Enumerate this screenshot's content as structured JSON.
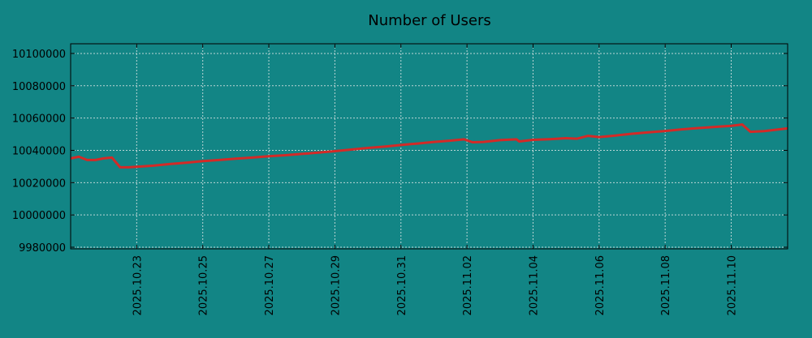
{
  "chart_data": {
    "type": "line",
    "title": "Number of Users",
    "xlabel": "",
    "ylabel": "",
    "ylim": [
      9979000,
      10106000
    ],
    "yticks": [
      9980000,
      10000000,
      10020000,
      10040000,
      10060000,
      10080000,
      10100000
    ],
    "xlim": [
      "2025.10.21 00:00",
      "2025.11.11 17:00"
    ],
    "xticks": [
      "2025.10.23",
      "2025.10.25",
      "2025.10.27",
      "2025.10.29",
      "2025.10.31",
      "2025.11.02",
      "2025.11.04",
      "2025.11.06",
      "2025.11.08",
      "2025.11.10"
    ],
    "grid": true,
    "legend": "none",
    "colors": {
      "background": "#128585",
      "line": "#d32a27",
      "grid": "#bcd6d6",
      "spine": "#000000"
    },
    "series": [
      {
        "x": [
          "2025.10.21 00:00",
          "2025.10.21 06:00",
          "2025.10.21 12:00",
          "2025.10.21 18:00",
          "2025.10.22 00:00",
          "2025.10.22 06:00",
          "2025.10.22 12:00",
          "2025.10.22 18:00",
          "2025.10.23 00:00",
          "2025.10.23 12:00",
          "2025.10.24 00:00",
          "2025.10.24 12:00",
          "2025.10.25 00:00",
          "2025.10.25 12:00",
          "2025.10.26 00:00",
          "2025.10.26 12:00",
          "2025.10.27 00:00",
          "2025.10.27 12:00",
          "2025.10.28 00:00",
          "2025.10.28 12:00",
          "2025.10.29 00:00",
          "2025.10.29 12:00",
          "2025.10.30 00:00",
          "2025.10.30 12:00",
          "2025.10.31 00:00",
          "2025.10.31 12:00",
          "2025.11.01 00:00",
          "2025.11.01 12:00",
          "2025.11.01 22:00",
          "2025.11.02 04:00",
          "2025.11.02 12:00",
          "2025.11.03 00:00",
          "2025.11.03 12:00",
          "2025.11.03 14:00",
          "2025.11.04 00:00",
          "2025.11.04 12:00",
          "2025.11.05 00:00",
          "2025.11.05 08:00",
          "2025.11.05 16:00",
          "2025.11.06 00:00",
          "2025.11.06 12:00",
          "2025.11.07 00:00",
          "2025.11.07 12:00",
          "2025.11.08 00:00",
          "2025.11.08 12:00",
          "2025.11.09 00:00",
          "2025.11.09 12:00",
          "2025.11.10 00:00",
          "2025.11.10 08:00",
          "2025.11.10 14:00",
          "2025.11.11 00:00",
          "2025.11.11 17:00"
        ],
        "y": [
          10035000,
          10036000,
          10034000,
          10034000,
          10035000,
          10035500,
          10029500,
          10029500,
          10029800,
          10030500,
          10031500,
          10032300,
          10033300,
          10034000,
          10034800,
          10035500,
          10036400,
          10037000,
          10037800,
          10038600,
          10039500,
          10040500,
          10041500,
          10042300,
          10043300,
          10044200,
          10045200,
          10046000,
          10046800,
          10045000,
          10045200,
          10046300,
          10046800,
          10045500,
          10046500,
          10046900,
          10047500,
          10047200,
          10049000,
          10048200,
          10049200,
          10050300,
          10051200,
          10052000,
          10053000,
          10053800,
          10054500,
          10055200,
          10056000,
          10051500,
          10051900,
          10053600
        ]
      }
    ]
  }
}
